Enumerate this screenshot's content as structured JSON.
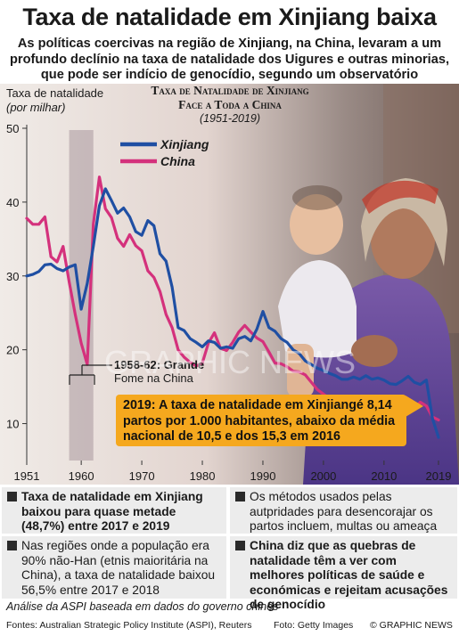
{
  "header": {
    "title": "Taxa de natalidade em Xinjiang baixa",
    "subtitle_lines": [
      "As políticas coercivas na região de Xinjiang, na China, levaram a um",
      "profundo declínio na taxa de natalidade dos Uigures e outras minorias,",
      "que pode ser indício de genocídio, segundo um observatório australiano"
    ]
  },
  "chart_data": {
    "type": "line",
    "title_lines": [
      "Taxa de Natalidade de Xinjiang",
      "Face a Toda a China"
    ],
    "subtitle": "(1951-2019)",
    "ylabel_lines": [
      "Taxa de natalidade",
      "(por milhar)"
    ],
    "x_ticks": [
      1951,
      1960,
      1970,
      1980,
      1990,
      2000,
      2010,
      2019
    ],
    "y_ticks": [
      10,
      20,
      30,
      40,
      50
    ],
    "xlim": [
      1950,
      2020
    ],
    "ylim": [
      5,
      50
    ],
    "grid": false,
    "legend_position": "top",
    "shaded_period": {
      "from": 1958,
      "to": 1962,
      "label_lines": [
        "1958-62: Grande",
        "Fome na China"
      ]
    },
    "series": [
      {
        "name": "Xinjiang",
        "color": "#1f4fa3",
        "points": [
          [
            1951,
            30.0
          ],
          [
            1952,
            30.2
          ],
          [
            1953,
            30.6
          ],
          [
            1954,
            31.5
          ],
          [
            1955,
            31.6
          ],
          [
            1956,
            31.0
          ],
          [
            1957,
            30.7
          ],
          [
            1958,
            31.2
          ],
          [
            1959,
            31.5
          ],
          [
            1960,
            25.5
          ],
          [
            1961,
            29.0
          ],
          [
            1962,
            34.0
          ],
          [
            1963,
            39.5
          ],
          [
            1964,
            41.8
          ],
          [
            1965,
            40.2
          ],
          [
            1966,
            38.5
          ],
          [
            1967,
            39.2
          ],
          [
            1968,
            38.0
          ],
          [
            1969,
            36.0
          ],
          [
            1970,
            35.5
          ],
          [
            1971,
            37.5
          ],
          [
            1972,
            36.8
          ],
          [
            1973,
            33.0
          ],
          [
            1974,
            32.0
          ],
          [
            1975,
            28.5
          ],
          [
            1976,
            23.0
          ],
          [
            1977,
            22.6
          ],
          [
            1978,
            21.5
          ],
          [
            1979,
            21.0
          ],
          [
            1980,
            20.4
          ],
          [
            1981,
            21.2
          ],
          [
            1982,
            21.0
          ],
          [
            1983,
            20.2
          ],
          [
            1984,
            20.4
          ],
          [
            1985,
            20.2
          ],
          [
            1986,
            21.5
          ],
          [
            1987,
            21.8
          ],
          [
            1988,
            21.2
          ],
          [
            1989,
            22.8
          ],
          [
            1990,
            25.2
          ],
          [
            1991,
            23.0
          ],
          [
            1992,
            22.5
          ],
          [
            1993,
            21.5
          ],
          [
            1994,
            21.0
          ],
          [
            1995,
            20.0
          ],
          [
            1996,
            19.5
          ],
          [
            1997,
            18.5
          ],
          [
            1998,
            18.0
          ],
          [
            1999,
            17.5
          ],
          [
            2000,
            17.2
          ],
          [
            2001,
            16.8
          ],
          [
            2002,
            16.5
          ],
          [
            2003,
            16.0
          ],
          [
            2004,
            16.0
          ],
          [
            2005,
            16.3
          ],
          [
            2006,
            16.0
          ],
          [
            2007,
            16.5
          ],
          [
            2008,
            16.0
          ],
          [
            2009,
            16.2
          ],
          [
            2010,
            15.9
          ],
          [
            2011,
            15.4
          ],
          [
            2012,
            15.3
          ],
          [
            2013,
            15.8
          ],
          [
            2014,
            16.4
          ],
          [
            2015,
            15.6
          ],
          [
            2016,
            15.3
          ],
          [
            2017,
            15.9
          ],
          [
            2018,
            10.7
          ],
          [
            2019,
            8.14
          ]
        ]
      },
      {
        "name": "China",
        "color": "#d4317c",
        "points": [
          [
            1951,
            37.8
          ],
          [
            1952,
            37.0
          ],
          [
            1953,
            37.0
          ],
          [
            1954,
            38.0
          ],
          [
            1955,
            32.6
          ],
          [
            1956,
            31.9
          ],
          [
            1957,
            34.0
          ],
          [
            1958,
            29.2
          ],
          [
            1959,
            24.8
          ],
          [
            1960,
            20.9
          ],
          [
            1961,
            18.0
          ],
          [
            1962,
            37.0
          ],
          [
            1963,
            43.4
          ],
          [
            1964,
            39.1
          ],
          [
            1965,
            37.9
          ],
          [
            1966,
            35.1
          ],
          [
            1967,
            34.0
          ],
          [
            1968,
            35.6
          ],
          [
            1969,
            34.1
          ],
          [
            1970,
            33.4
          ],
          [
            1971,
            30.7
          ],
          [
            1972,
            29.8
          ],
          [
            1973,
            27.9
          ],
          [
            1974,
            24.8
          ],
          [
            1975,
            23.0
          ],
          [
            1976,
            20.0
          ],
          [
            1977,
            19.0
          ],
          [
            1978,
            18.3
          ],
          [
            1979,
            17.8
          ],
          [
            1980,
            18.2
          ],
          [
            1981,
            20.9
          ],
          [
            1982,
            22.3
          ],
          [
            1983,
            20.2
          ],
          [
            1984,
            19.9
          ],
          [
            1985,
            21.0
          ],
          [
            1986,
            22.4
          ],
          [
            1987,
            23.3
          ],
          [
            1988,
            22.4
          ],
          [
            1989,
            21.6
          ],
          [
            1990,
            21.1
          ],
          [
            1991,
            19.7
          ],
          [
            1992,
            18.2
          ],
          [
            1993,
            18.1
          ],
          [
            1994,
            17.7
          ],
          [
            1995,
            17.1
          ],
          [
            1996,
            17.0
          ],
          [
            1997,
            16.6
          ],
          [
            1998,
            15.6
          ],
          [
            1999,
            14.6
          ],
          [
            2000,
            14.0
          ],
          [
            2001,
            13.4
          ],
          [
            2002,
            12.9
          ],
          [
            2003,
            12.4
          ],
          [
            2004,
            12.3
          ],
          [
            2005,
            12.4
          ],
          [
            2006,
            12.1
          ],
          [
            2007,
            12.1
          ],
          [
            2008,
            12.1
          ],
          [
            2009,
            12.0
          ],
          [
            2010,
            11.9
          ],
          [
            2011,
            11.9
          ],
          [
            2012,
            12.1
          ],
          [
            2013,
            12.1
          ],
          [
            2014,
            12.4
          ],
          [
            2015,
            12.1
          ],
          [
            2016,
            12.9
          ],
          [
            2017,
            12.4
          ],
          [
            2018,
            10.9
          ],
          [
            2019,
            10.5
          ]
        ]
      }
    ]
  },
  "callout": {
    "lines": [
      "2019: A taxa de natalidade em Xinjiangé 8,14",
      "partos por 1.000 habitantes, abaixo da média",
      "nacional de 10,5 e dos 15,3 em 2016"
    ]
  },
  "facts": [
    "Taxa de natalidade em Xinjiang baixou para quase metade (48,7%) entre 2017 e 2019",
    "Os métodos usados pelas autpridades para desencorajar os partos incluem, multas ou ameaça de internamento",
    "Nas regiões onde a população era 90% não-Han (etnis maioritária na China), a taxa de natalidade baixou 56,5% entre 2017 e 2018",
    "China diz que as quebras de natalidade têm a ver com melhores políticas de saúde e económicas e rejeitam acusações de genocídio"
  ],
  "footer": {
    "analysis": "Análise da ASPI baseada em dados do governo chinês",
    "sources": "Fontes: Australian Strategic Policy Institute (ASPI), Reuters",
    "photo": "Foto: Getty Images",
    "copyright": "© GRAPHIC NEWS",
    "watermark": "GRAPHIC NEWS"
  }
}
